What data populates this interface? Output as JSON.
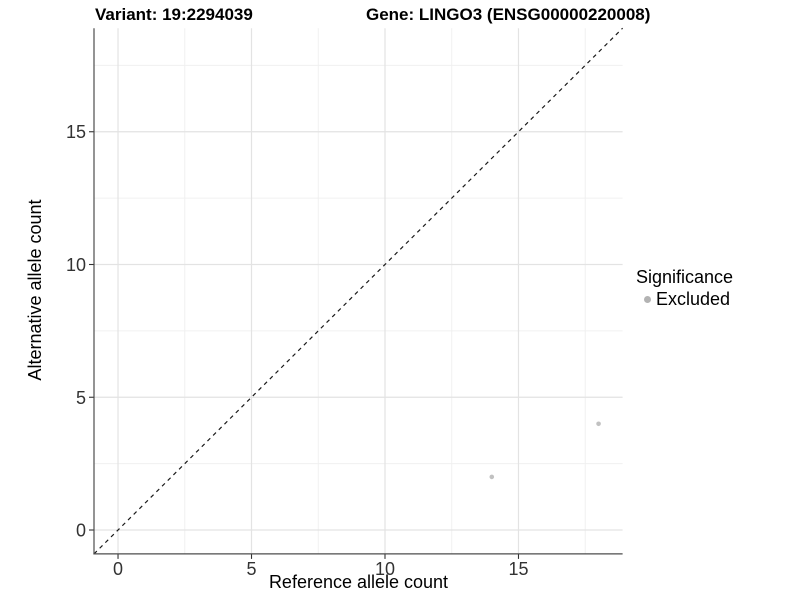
{
  "chart_data": {
    "type": "scatter",
    "titles": {
      "left": "Variant: 19:2294039",
      "right": "Gene: LINGO3 (ENSG00000220008)"
    },
    "xlabel": "Reference allele count",
    "ylabel": "Alternative allele count",
    "xlim": [
      -0.9,
      18.9
    ],
    "ylim": [
      -0.9,
      18.9
    ],
    "xticks": [
      0,
      5,
      10,
      15
    ],
    "yticks": [
      0,
      5,
      10,
      15
    ],
    "x_minor_gridlines": [
      2.5,
      7.5,
      12.5,
      17.5
    ],
    "y_minor_gridlines": [
      2.5,
      7.5,
      12.5,
      17.5
    ],
    "grid": true,
    "legend_position": "right",
    "legend": {
      "title": "Significance",
      "items": [
        {
          "label": "Excluded",
          "color": "#b3b3b3"
        }
      ]
    },
    "series": [
      {
        "name": "Excluded",
        "color": "#c1c1c1",
        "marker_radius": 2.3,
        "points": [
          [
            14,
            2
          ],
          [
            18,
            4
          ]
        ]
      }
    ],
    "reference_line": {
      "kind": "identity",
      "style": "dashed",
      "color": "#1a1a1a"
    }
  }
}
